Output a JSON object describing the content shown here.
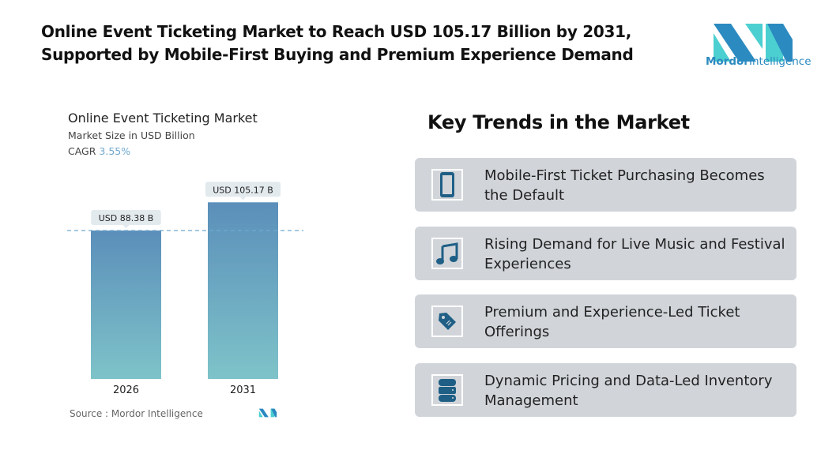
{
  "header": {
    "title_line1": "Online Event Ticketing Market to Reach USD 105.17 Billion by 2031,",
    "title_line2": "Supported by Mobile-First Buying and Premium Experience Demand"
  },
  "logo": {
    "word1": "Mordor",
    "word2": "Intelligence"
  },
  "chart_data": {
    "type": "bar",
    "title": "Online Event Ticketing Market",
    "subtitle": "Market Size in USD Billion",
    "cagr_label": "CAGR",
    "cagr_value": "3.55%",
    "categories": [
      "2026",
      "2031"
    ],
    "values": [
      88.38,
      105.17
    ],
    "data_labels": [
      "USD 88.38 B",
      "USD 105.17 B"
    ],
    "ylim": [
      0,
      110
    ],
    "grid": false,
    "reference_line": 88.38,
    "source": "Source :  Mordor Intelligence",
    "colors": {
      "bar_top": "#5b8fba",
      "bar_bottom": "#7ec3c9",
      "dash": "#6fa8cf"
    }
  },
  "trends": {
    "heading": "Key Trends in the Market",
    "items": [
      {
        "icon": "smartphone-icon",
        "line1": "Mobile-First Ticket Purchasing Becomes",
        "line2": "the Default"
      },
      {
        "icon": "music-note-icon",
        "line1": "Rising Demand for Live Music and Festival",
        "line2": "Experiences"
      },
      {
        "icon": "price-tag-icon",
        "line1": "Premium and Experience-Led Ticket",
        "line2": "Offerings"
      },
      {
        "icon": "database-icon",
        "line1": "Dynamic Pricing and Data-Led Inventory",
        "line2": "Management"
      }
    ],
    "icon_color": "#1f5f86"
  }
}
